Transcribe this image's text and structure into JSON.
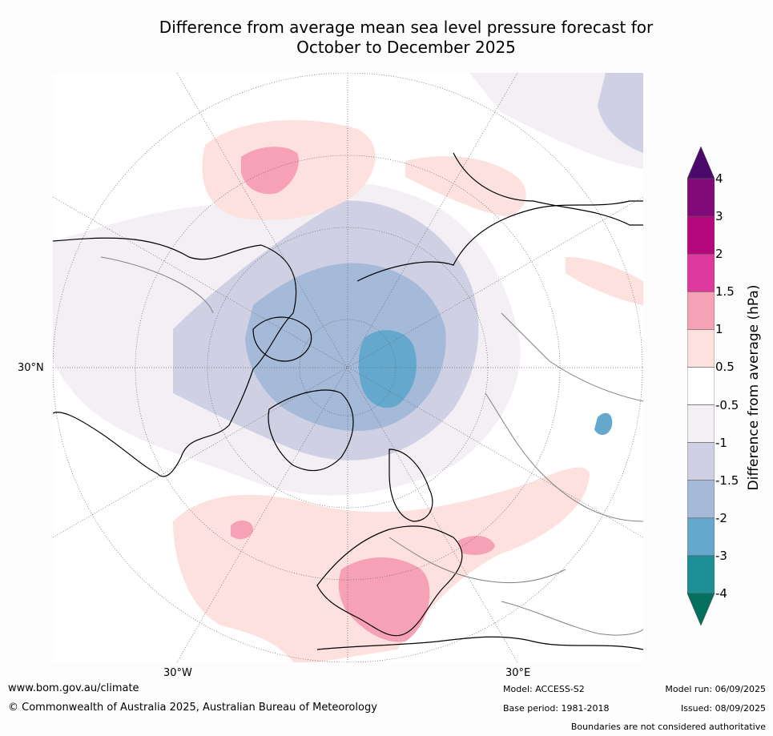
{
  "title": {
    "line1": "Difference from average mean sea level pressure forecast for",
    "line2": "October to December 2025"
  },
  "map": {
    "projection": "north polar stereographic",
    "lat_label": "30°N",
    "lon_label_left": "30°W",
    "lon_label_right": "30°E",
    "colors": {
      "land_outline": "#000000",
      "borders": "#808080",
      "graticule": "#666666"
    }
  },
  "colorbar": {
    "label": "Difference from average (hPa)",
    "tick_labels": [
      "4",
      "3",
      "2",
      "1.5",
      "1",
      "0.5",
      "-0.5",
      "-1",
      "-1.5",
      "-2",
      "-3",
      "-4"
    ],
    "bins": [
      {
        "range": ">4",
        "color": "#4b0a6b"
      },
      {
        "range": "3 to 4",
        "color": "#820a78"
      },
      {
        "range": "2 to 3",
        "color": "#b4087c"
      },
      {
        "range": "1.5 to 2",
        "color": "#de3a9e"
      },
      {
        "range": "1 to 1.5",
        "color": "#f7a1b7"
      },
      {
        "range": "0.5 to 1",
        "color": "#fde1df"
      },
      {
        "range": "-0.5 to 0.5",
        "color": "#ffffff"
      },
      {
        "range": "-1 to -0.5",
        "color": "#f3eff5"
      },
      {
        "range": "-1.5 to -1",
        "color": "#d0d0e4"
      },
      {
        "range": "-2 to -1.5",
        "color": "#a5b9d9"
      },
      {
        "range": "-3 to -2",
        "color": "#65a8ce"
      },
      {
        "range": "-4 to -3",
        "color": "#1d9096"
      },
      {
        "range": "<-4",
        "color": "#03705e"
      }
    ]
  },
  "footer": {
    "website": "www.bom.gov.au/climate",
    "copyright": "© Commonwealth of Australia 2025, Australian Bureau of Meteorology",
    "model": "Model: ACCESS-S2",
    "base_period": "Base period: 1981-2018",
    "model_run": "Model run: 06/09/2025",
    "issued": "Issued: 08/09/2025",
    "disclaimer": "Boundaries are not considered authoritative"
  }
}
